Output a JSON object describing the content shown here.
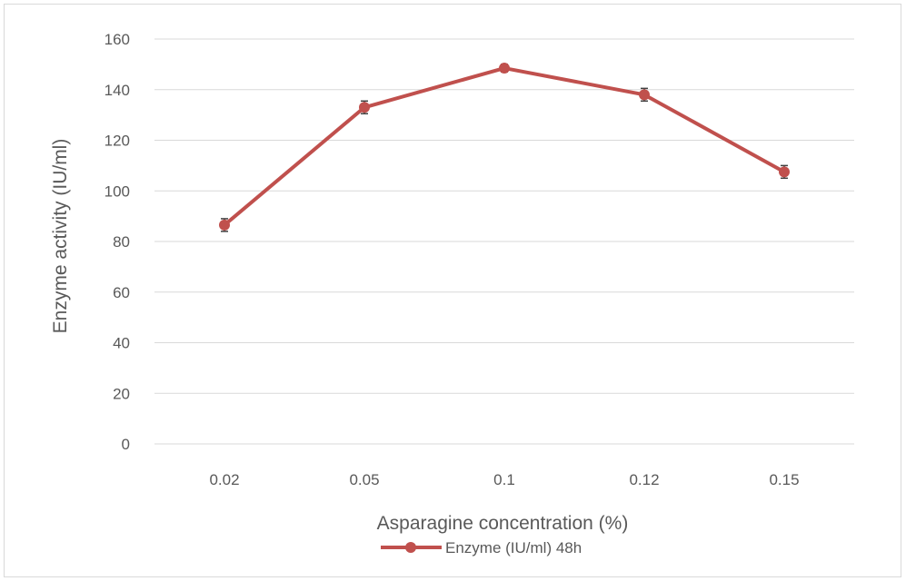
{
  "chart_data": {
    "type": "line",
    "categories": [
      "0.02",
      "0.05",
      "0.1",
      "0.12",
      "0.15"
    ],
    "series": [
      {
        "name": "Enzyme (IU/ml) 48h",
        "values": [
          86.5,
          133,
          148.5,
          138,
          107.5
        ],
        "error": [
          2.5,
          2.5,
          1.5,
          2.5,
          2.5
        ],
        "color": "#c0504d"
      }
    ],
    "title": "",
    "xlabel": "Asparagine concentration (%)",
    "ylabel": "Enzyme activity (IU/ml)",
    "ylim": [
      0,
      160
    ],
    "yticks": [
      0,
      20,
      40,
      60,
      80,
      100,
      120,
      140,
      160
    ],
    "grid": true,
    "legend_position": "bottom"
  }
}
